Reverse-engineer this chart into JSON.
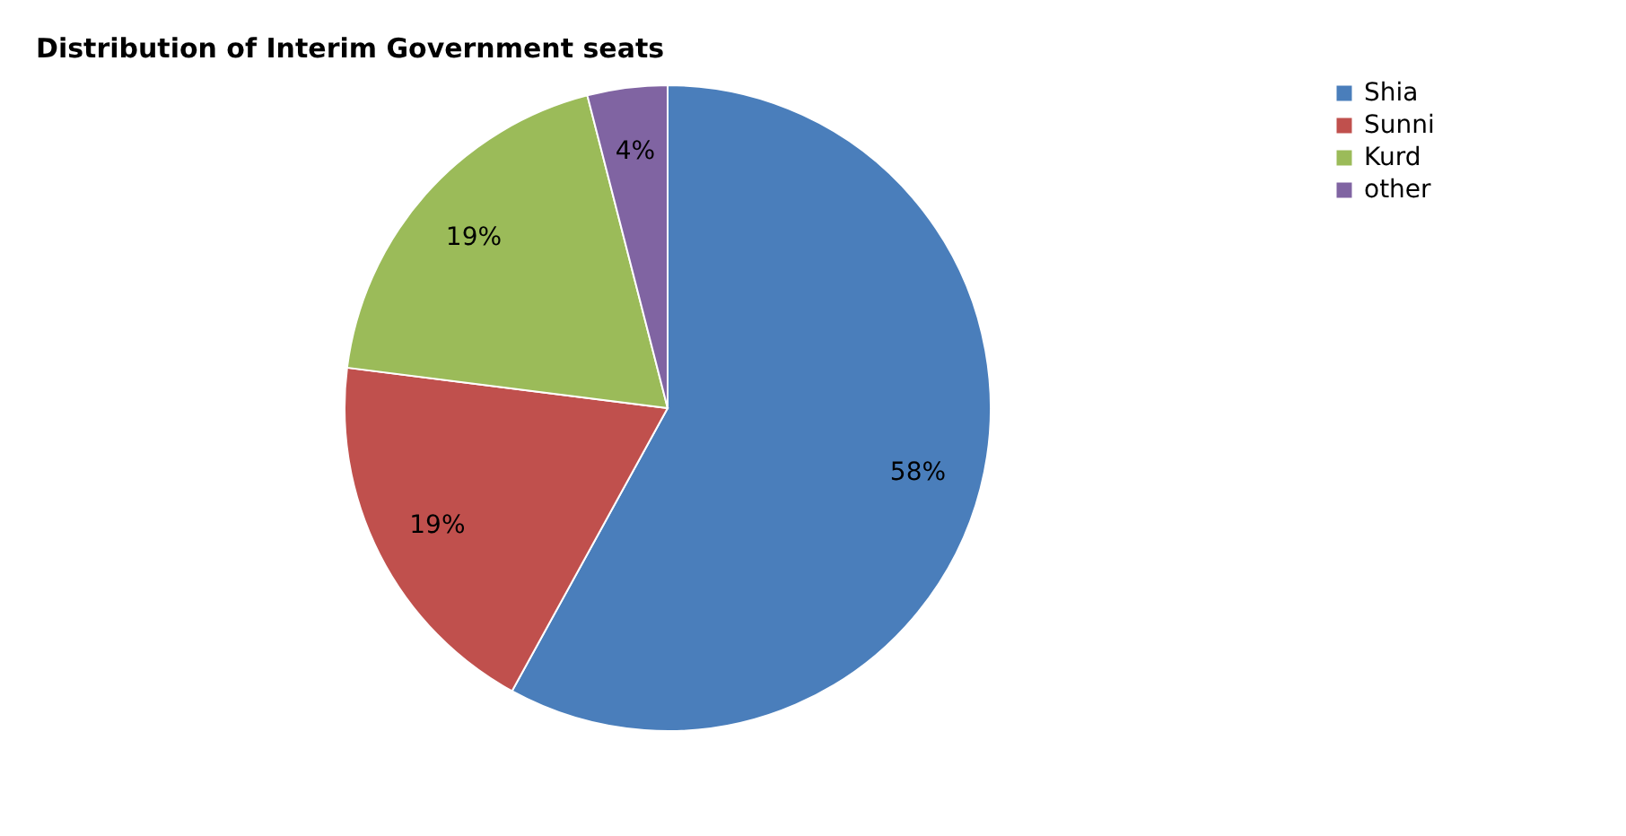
{
  "chart_data": {
    "type": "pie",
    "title": "Distribution of Interim Government seats",
    "categories": [
      "Shia",
      "Sunni",
      "Kurd",
      "other"
    ],
    "values": [
      58,
      19,
      19,
      4
    ],
    "colors": [
      "#4a7ebb",
      "#c0504d",
      "#9bbb59",
      "#8064a2"
    ],
    "value_labels": [
      "58%",
      "19%",
      "19%",
      "4%"
    ],
    "legend": "right"
  }
}
